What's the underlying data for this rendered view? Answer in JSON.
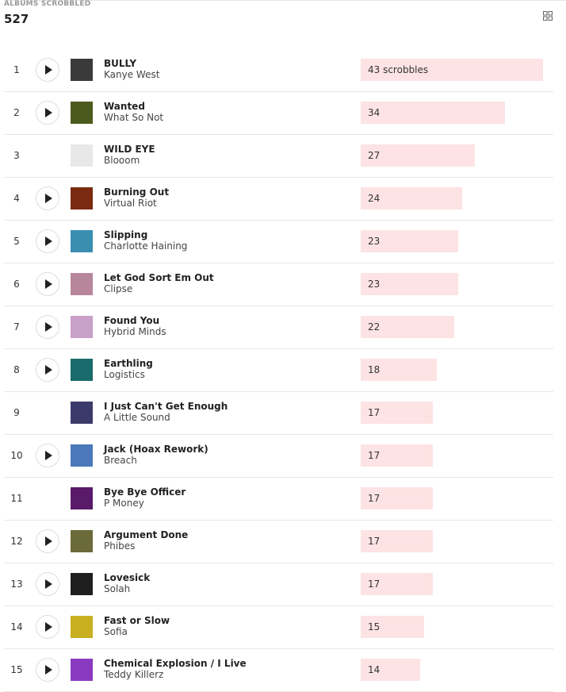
{
  "header": {
    "label": "ALBUMS SCROBBLED",
    "count": 527
  },
  "rows": [
    {
      "rank": 1,
      "title": "BULLY",
      "artist": "Kanye West",
      "scrobbles": 43,
      "scrobbles_label": "43 scrobbles",
      "play": true,
      "art": "#3a3a3a"
    },
    {
      "rank": 2,
      "title": "Wanted",
      "artist": "What So Not",
      "scrobbles": 34,
      "play": true,
      "art": "#4d5a1e"
    },
    {
      "rank": 3,
      "title": "WILD EYE",
      "artist": "Blooom",
      "scrobbles": 27,
      "play": false,
      "art": "#e8e8e8"
    },
    {
      "rank": 4,
      "title": "Burning Out",
      "artist": "Virtual Riot",
      "scrobbles": 24,
      "play": true,
      "art": "#7a2a10"
    },
    {
      "rank": 5,
      "title": "Slipping",
      "artist": "Charlotte Haining",
      "scrobbles": 23,
      "play": true,
      "art": "#3a8fb0"
    },
    {
      "rank": 6,
      "title": "Let God Sort Em Out",
      "artist": "Clipse",
      "scrobbles": 23,
      "play": true,
      "art": "#b8869a"
    },
    {
      "rank": 7,
      "title": "Found You",
      "artist": "Hybrid Minds",
      "scrobbles": 22,
      "play": true,
      "art": "#c9a0c8"
    },
    {
      "rank": 8,
      "title": "Earthling",
      "artist": "Logistics",
      "scrobbles": 18,
      "play": true,
      "art": "#1a6b6b"
    },
    {
      "rank": 9,
      "title": "I Just Can't Get Enough",
      "artist": "A Little Sound",
      "scrobbles": 17,
      "play": false,
      "art": "#3b3b6b"
    },
    {
      "rank": 10,
      "title": "Jack (Hoax Rework)",
      "artist": "Breach",
      "scrobbles": 17,
      "play": true,
      "art": "#4a78b8"
    },
    {
      "rank": 11,
      "title": "Bye Bye Officer",
      "artist": "P Money",
      "scrobbles": 17,
      "play": false,
      "art": "#5a1a6a"
    },
    {
      "rank": 12,
      "title": "Argument Done",
      "artist": "Phibes",
      "scrobbles": 17,
      "play": true,
      "art": "#6b6a3a"
    },
    {
      "rank": 13,
      "title": "Lovesick",
      "artist": "Solah",
      "scrobbles": 17,
      "play": true,
      "art": "#1e1e1e"
    },
    {
      "rank": 14,
      "title": "Fast or Slow",
      "artist": "Sofia",
      "scrobbles": 15,
      "play": true,
      "art": "#c8b020"
    },
    {
      "rank": 15,
      "title": "Chemical Explosion / I Live",
      "artist": "Teddy Killerz",
      "scrobbles": 14,
      "play": true,
      "art": "#8a3ac0"
    }
  ]
}
